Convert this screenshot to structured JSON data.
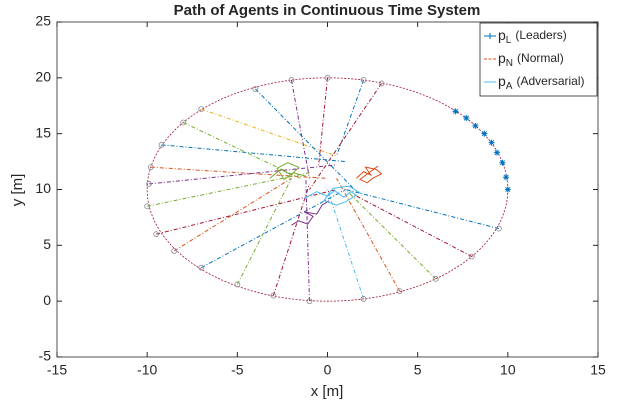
{
  "chart_data": {
    "type": "line",
    "title": "Path of Agents in Continuous Time System",
    "x_label": "x [m]",
    "y_label": "y [m]",
    "xlim": [
      -15,
      15
    ],
    "ylim": [
      -5,
      25
    ],
    "xticks": [
      -15,
      -10,
      -5,
      0,
      5,
      10,
      15
    ],
    "yticks": [
      -5,
      0,
      5,
      10,
      15,
      20,
      25
    ],
    "legend_position": "northeast",
    "circle": {
      "center": [
        0,
        10
      ],
      "radius": 10,
      "color": "#a2142f"
    },
    "series": [
      {
        "name": {
          "symbol": "p",
          "subscript": "L",
          "text": "(Leaders)"
        },
        "color": "#0072bd",
        "marker": "star",
        "x": [
          7.1,
          7.7,
          8.2,
          8.7,
          9.1,
          9.4,
          9.7,
          9.9,
          10.0
        ],
        "y": [
          17.0,
          16.4,
          15.7,
          15.0,
          14.2,
          13.3,
          12.4,
          11.1,
          10.0
        ]
      },
      {
        "name": {
          "symbol": "p",
          "subscript": "N",
          "text": "(Normal)"
        },
        "color": "#d95319",
        "marker": "none",
        "x": [
          1.6,
          2.0,
          2.4,
          2.1,
          2.7,
          3.0,
          2.5,
          2.2,
          1.8,
          2.3,
          2.8
        ],
        "y": [
          11.0,
          11.6,
          11.3,
          12.0,
          11.8,
          11.4,
          11.0,
          10.6,
          10.9,
          11.5,
          12.1
        ]
      },
      {
        "name": {
          "symbol": "p",
          "subscript": "A",
          "text": "(Adversarial)"
        },
        "color": "#4dbeee",
        "marker": "none",
        "x": [
          -1.3,
          -0.6,
          0.0,
          0.4,
          0.9,
          1.3,
          1.6,
          1.0,
          0.5,
          -0.2,
          0.3,
          1.2,
          1.9
        ],
        "y": [
          9.2,
          9.8,
          9.4,
          9.9,
          9.3,
          9.8,
          9.5,
          8.9,
          8.6,
          9.0,
          10.1,
          10.3,
          9.6
        ]
      }
    ],
    "paths": [
      {
        "color": "#77ac30",
        "x": [
          -10,
          -1
        ],
        "y": [
          8.5,
          11.5
        ]
      },
      {
        "color": "#d95319",
        "x": [
          -9.8,
          0
        ],
        "y": [
          12,
          11
        ]
      },
      {
        "color": "#0072bd",
        "x": [
          -9.2,
          1
        ],
        "y": [
          14,
          12.5
        ]
      },
      {
        "color": "#77ac30",
        "x": [
          -8,
          -1.5
        ],
        "y": [
          16,
          11
        ]
      },
      {
        "color": "#edb120",
        "x": [
          -7,
          0.5
        ],
        "y": [
          17.2,
          13
        ]
      },
      {
        "color": "#0072bd",
        "x": [
          -4,
          1.5
        ],
        "y": [
          19,
          10
        ]
      },
      {
        "color": "#7e2f8e",
        "x": [
          -2,
          -1
        ],
        "y": [
          19.8,
          11
        ]
      },
      {
        "color": "#a2142f",
        "x": [
          0,
          -0.5
        ],
        "y": [
          20,
          12
        ]
      },
      {
        "color": "#0072bd",
        "x": [
          2,
          0.5
        ],
        "y": [
          19.8,
          13
        ]
      },
      {
        "color": "#a2142f",
        "x": [
          -9.5,
          0.5
        ],
        "y": [
          6,
          10
        ]
      },
      {
        "color": "#d95319",
        "x": [
          -8.5,
          -2
        ],
        "y": [
          4.5,
          11
        ]
      },
      {
        "color": "#0072bd",
        "x": [
          -7,
          1
        ],
        "y": [
          3,
          10
        ]
      },
      {
        "color": "#77ac30",
        "x": [
          -5,
          -2
        ],
        "y": [
          1.5,
          11
        ]
      },
      {
        "color": "#a2142f",
        "x": [
          -3,
          -1
        ],
        "y": [
          0.5,
          10.5
        ]
      },
      {
        "color": "#7e2f8e",
        "x": [
          -1,
          -1.2
        ],
        "y": [
          0,
          11
        ]
      },
      {
        "color": "#4dbeee",
        "x": [
          2,
          0
        ],
        "y": [
          0.2,
          10
        ]
      },
      {
        "color": "#d95319",
        "x": [
          4,
          0.5
        ],
        "y": [
          0.9,
          11
        ]
      },
      {
        "color": "#77ac30",
        "x": [
          6,
          1
        ],
        "y": [
          2,
          10
        ]
      },
      {
        "color": "#a2142f",
        "x": [
          8,
          1.5
        ],
        "y": [
          4,
          9.5
        ]
      },
      {
        "color": "#0072bd",
        "x": [
          9.5,
          1
        ],
        "y": [
          6.5,
          10
        ]
      },
      {
        "color": "#a2142f",
        "x": [
          3,
          -1
        ],
        "y": [
          19.5,
          10
        ]
      },
      {
        "color": "#7e2f8e",
        "x": [
          -9.9,
          0.5
        ],
        "y": [
          10.5,
          12.2
        ]
      },
      {
        "color": "#77ac30",
        "x": [
          -3.2,
          -2.6,
          -2.0,
          -1.6,
          -2.2,
          -2.8,
          -2.4,
          -1.9,
          -1.2
        ],
        "y": [
          11.0,
          11.8,
          11.3,
          12.0,
          12.4,
          11.9,
          10.9,
          11.5,
          11.2
        ]
      },
      {
        "color": "#7e2f8e",
        "x": [
          -2.0,
          -1.6,
          -1.1,
          -0.8,
          -1.3,
          -0.6,
          -0.3,
          0.1
        ],
        "y": [
          6.8,
          7.2,
          6.9,
          7.6,
          8.0,
          7.8,
          8.6,
          9.0
        ]
      }
    ]
  }
}
